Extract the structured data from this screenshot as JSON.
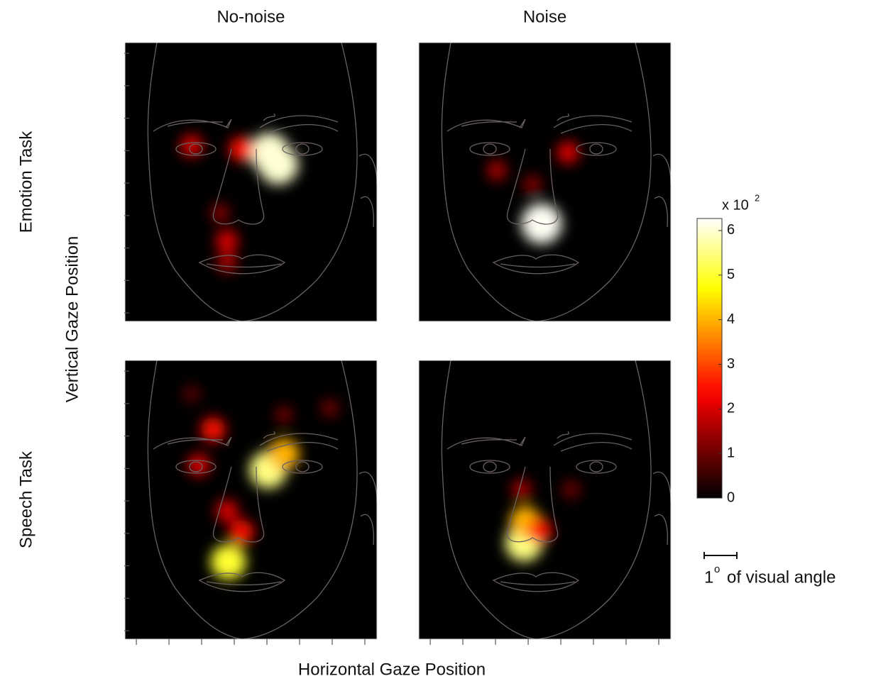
{
  "chart_data": {
    "type": "heatmap",
    "colormap": "hot",
    "column_titles": [
      "No-noise",
      "Noise"
    ],
    "row_titles": [
      "Emotion Task",
      "Speech Task"
    ],
    "x_label": "Horizontal Gaze Position",
    "y_label": "Vertical Gaze Position",
    "xlim": [
      0.65,
      8.37
    ],
    "ylim": [
      0.74,
      9.33
    ],
    "xticks": [
      1,
      2,
      3,
      4,
      5,
      6,
      7,
      8
    ],
    "yticks": [
      1,
      2,
      3,
      4,
      5,
      6,
      7,
      8,
      9
    ],
    "panels": [
      {
        "points": {
          "x": [
            5.08,
            5.35,
            2.69,
            4.22,
            3.78,
            3.78,
            3.56
          ],
          "y": [
            5.94,
            5.57,
            6.15,
            6.05,
            3.21,
            2.55,
            4.08
          ],
          "values": [
            6,
            6,
            2,
            2.5,
            2,
            1.5,
            1.2
          ]
        }
      },
      {
        "points": {
          "x": [
            4.41,
            3.04,
            5.22,
            4.13
          ],
          "y": [
            3.75,
            5.39,
            5.94,
            4.95
          ],
          "values": [
            6.2,
            1.5,
            2,
            1.2
          ]
        }
      },
      {
        "points": {
          "x": [
            3.82,
            5.04,
            5.52,
            3.35,
            2.91,
            4.22,
            3.78,
            6.93,
            5.52,
            2.69
          ],
          "y": [
            3.12,
            5.96,
            6.44,
            7.2,
            6.11,
            4.04,
            4.69,
            7.86,
            7.64,
            8.3
          ],
          "values": [
            5,
            5.5,
            4,
            2.5,
            2,
            2.5,
            2,
            1,
            1,
            0.8
          ]
        }
      },
      {
        "points": {
          "x": [
            3.87,
            3.91,
            4.35,
            3.8,
            5.32
          ],
          "y": [
            3.71,
            4.36,
            4.08,
            5.35,
            5.35
          ],
          "values": [
            5.5,
            4,
            2.5,
            1.5,
            1
          ]
        }
      }
    ],
    "colorbar": {
      "clim": [
        0,
        6.27
      ],
      "ticks": [
        0,
        1,
        2,
        3,
        4,
        5,
        6
      ],
      "multiplier_base": "x 10",
      "multiplier_exponent": "2"
    },
    "scale_bar": {
      "value": 1,
      "unit_symbol": "o",
      "unit_text": "of visual angle"
    }
  }
}
